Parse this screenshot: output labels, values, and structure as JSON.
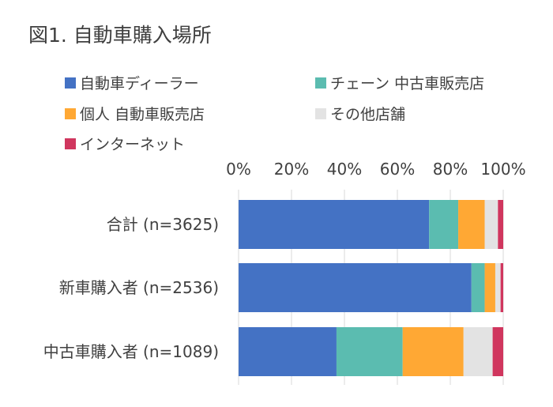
{
  "chart_data": {
    "type": "bar",
    "orientation": "horizontal",
    "stacked": "percent",
    "title": "図1. 自動車購入場所",
    "categories": [
      "合計 (n=3625)",
      "新車購入者 (n=2536)",
      "中古車購入者 (n=1089)"
    ],
    "series": [
      {
        "name": "自動車ディーラー",
        "color": "#4472C4",
        "values": [
          72,
          88,
          37
        ]
      },
      {
        "name": "チェーン 中古車販売店",
        "color": "#5BBCB0",
        "values": [
          11,
          5,
          25
        ]
      },
      {
        "name": "個人 自動車販売店",
        "color": "#FFA834",
        "values": [
          10,
          4,
          23
        ]
      },
      {
        "name": "その他店舗",
        "color": "#E3E3E3",
        "values": [
          5,
          2,
          11
        ]
      },
      {
        "name": "インターネット",
        "color": "#D0365E",
        "values": [
          2,
          1,
          4
        ]
      }
    ],
    "x_ticks": [
      "0%",
      "20%",
      "40%",
      "60%",
      "80%",
      "100%"
    ],
    "xlim": [
      0,
      100
    ],
    "grid": true,
    "legend_position": "top"
  }
}
